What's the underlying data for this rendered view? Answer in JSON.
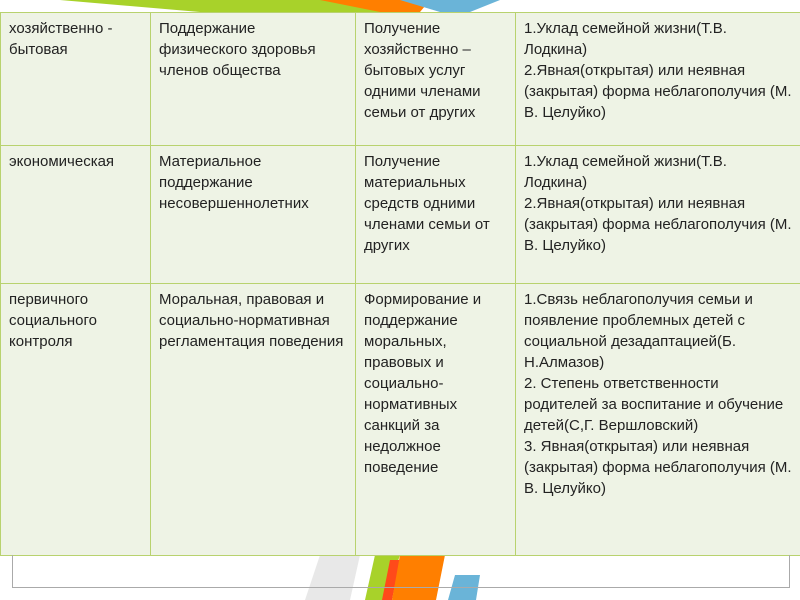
{
  "colors": {
    "cell_background": "#eef3e5",
    "border": "#b8d26e",
    "accent_green": "#a8d22a",
    "accent_orange": "#ff7f00",
    "accent_red": "#ff4a1a",
    "accent_blue": "#6ab4d8"
  },
  "table": {
    "rows": [
      {
        "cells": [
          "хозяйственно - бытовая",
          "Поддержание физического здоровья членов общества",
          "Получение хозяйственно – бытовых услуг одними членами семьи от других",
          "1.Уклад семейной жизни(Т.В. Лодкина)\n2.Явная(открытая) или неявная (закрытая) форма неблагополучия (М. В. Целуйко)"
        ]
      },
      {
        "cells": [
          "экономическая",
          "Материальное поддержание несовершеннолетних",
          "Получение материальных средств одними членами семьи от других",
          "1.Уклад семейной жизни(Т.В. Лодкина)\n2.Явная(открытая) или неявная (закрытая) форма неблагополучия (М. В. Целуйко)"
        ]
      },
      {
        "cells": [
          "первичного социального контроля",
          "Моральная, правовая и социально-нормативная регламентация поведения",
          "Формирование и поддержание моральных, правовых и социально-нормативных санкций за недолжное поведение",
          "1.Связь неблагополучия семьи и появление проблемных детей с социальной дезадаптацией(Б. Н.Алмазов)\n2. Степень ответственности родителей за воспитание и обучение детей(С,Г. Вершловский)\n3. Явная(открытая) или неявная (закрытая) форма неблагополучия (М. В. Целуйко)"
        ]
      }
    ]
  }
}
